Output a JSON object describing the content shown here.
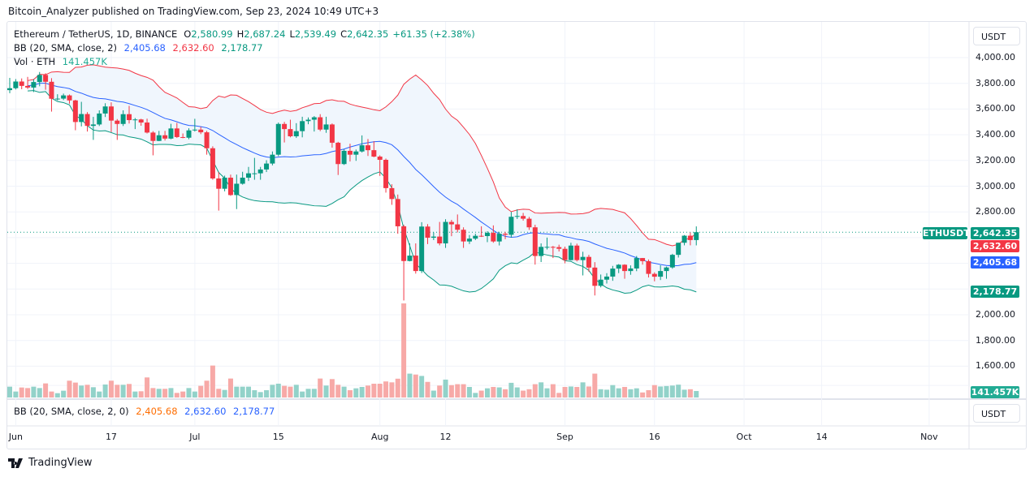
{
  "publish_line": "Bitcoin_Analyzer published on TradingView.com, Sep 23, 2024 10:49 UTC+3",
  "legend": {
    "symbol": "Ethereum / TetherUS, 1D, BINANCE",
    "open_label": "O",
    "open": "2,580.99",
    "high_label": "H",
    "high": "2,687.24",
    "low_label": "L",
    "low": "2,539.49",
    "close_label": "C",
    "close": "2,642.35",
    "change": "+61.35 (+2.38%)",
    "bb_label": "BB (20, SMA, close, 2)",
    "bb_basis": "2,405.68",
    "bb_upper": "2,632.60",
    "bb_lower": "2,178.77",
    "vol_label": "Vol · ETH",
    "vol_value": "141.457K"
  },
  "lower_pane": {
    "bb_label": "BB (20, SMA, close, 2, 0)",
    "v1": "2,405.68",
    "v2": "2,632.60",
    "v3": "2,178.77"
  },
  "currency_button": "USDT",
  "price_axis_labels": [
    "4,000.00",
    "3,800.00",
    "3,600.00",
    "3,400.00",
    "3,200.00",
    "3,000.00",
    "2,800.00",
    "2,000.00",
    "1,800.00",
    "1,600.00"
  ],
  "price_tags": {
    "symbol": "ETHUSDT",
    "last": "2,642.35",
    "bb_upper": "2,632.60",
    "bb_basis": "2,405.68",
    "bb_lower": "2,178.77",
    "volume": "141.457K"
  },
  "time_axis_labels": [
    "Jun",
    "17",
    "Jul",
    "15",
    "Aug",
    "12",
    "Sep",
    "16",
    "Oct",
    "14",
    "Nov"
  ],
  "footer_logo": "TradingView",
  "colors": {
    "up": "#089981",
    "down": "#f23645",
    "vol_up": "#92d2c9",
    "vol_down": "#f7a9a7",
    "bb_basis": "#2962ff",
    "bb_upper": "#f23645",
    "bb_lower": "#089981",
    "bb_fill": "#f0f6fd"
  },
  "chart_data": {
    "type": "candlestick",
    "symbol": "ETHUSDT",
    "interval": "1D",
    "start_date": "2024-05-31",
    "y_range": [
      1550,
      4150
    ],
    "grid": true,
    "indicators": [
      "BB (20, SMA, close, 2)",
      "Volume"
    ],
    "ohlc": [
      [
        3747,
        3842,
        3723,
        3762
      ],
      [
        3762,
        3833,
        3752,
        3814
      ],
      [
        3814,
        3838,
        3754,
        3780
      ],
      [
        3780,
        3850,
        3756,
        3767
      ],
      [
        3767,
        3832,
        3732,
        3810
      ],
      [
        3810,
        3888,
        3777,
        3865
      ],
      [
        3865,
        3878,
        3750,
        3812
      ],
      [
        3812,
        3840,
        3580,
        3680
      ],
      [
        3680,
        3715,
        3667,
        3681
      ],
      [
        3681,
        3720,
        3670,
        3706
      ],
      [
        3706,
        3713,
        3642,
        3667
      ],
      [
        3667,
        3672,
        3435,
        3499
      ],
      [
        3499,
        3656,
        3465,
        3561
      ],
      [
        3561,
        3576,
        3425,
        3469
      ],
      [
        3469,
        3539,
        3360,
        3480
      ],
      [
        3480,
        3590,
        3468,
        3565
      ],
      [
        3565,
        3645,
        3538,
        3620
      ],
      [
        3620,
        3652,
        3420,
        3510
      ],
      [
        3510,
        3522,
        3360,
        3484
      ],
      [
        3484,
        3590,
        3468,
        3560
      ],
      [
        3560,
        3625,
        3487,
        3514
      ],
      [
        3514,
        3530,
        3444,
        3519
      ],
      [
        3519,
        3524,
        3470,
        3495
      ],
      [
        3495,
        3525,
        3410,
        3417
      ],
      [
        3417,
        3428,
        3240,
        3352
      ],
      [
        3352,
        3430,
        3350,
        3396
      ],
      [
        3396,
        3430,
        3355,
        3370
      ],
      [
        3370,
        3485,
        3365,
        3449
      ],
      [
        3449,
        3492,
        3375,
        3382
      ],
      [
        3382,
        3410,
        3373,
        3377
      ],
      [
        3377,
        3450,
        3365,
        3434
      ],
      [
        3434,
        3524,
        3425,
        3440
      ],
      [
        3440,
        3462,
        3405,
        3419
      ],
      [
        3419,
        3430,
        3245,
        3295
      ],
      [
        3295,
        3310,
        3050,
        3060
      ],
      [
        3060,
        3110,
        2810,
        2980
      ],
      [
        2980,
        3082,
        2960,
        3066
      ],
      [
        3066,
        3090,
        2925,
        2931
      ],
      [
        2931,
        3090,
        2822,
        3019
      ],
      [
        3019,
        3112,
        3012,
        3066
      ],
      [
        3066,
        3150,
        3040,
        3100
      ],
      [
        3100,
        3220,
        3050,
        3100
      ],
      [
        3100,
        3150,
        3050,
        3130
      ],
      [
        3130,
        3202,
        3110,
        3176
      ],
      [
        3176,
        3270,
        3162,
        3245
      ],
      [
        3245,
        3495,
        3233,
        3484
      ],
      [
        3484,
        3500,
        3340,
        3444
      ],
      [
        3444,
        3517,
        3380,
        3388
      ],
      [
        3388,
        3490,
        3375,
        3428
      ],
      [
        3428,
        3540,
        3380,
        3506
      ],
      [
        3506,
        3535,
        3482,
        3517
      ],
      [
        3517,
        3545,
        3425,
        3536
      ],
      [
        3536,
        3560,
        3428,
        3440
      ],
      [
        3440,
        3540,
        3415,
        3480
      ],
      [
        3480,
        3488,
        3300,
        3338
      ],
      [
        3338,
        3345,
        3087,
        3172
      ],
      [
        3172,
        3287,
        3165,
        3275
      ],
      [
        3275,
        3330,
        3192,
        3245
      ],
      [
        3245,
        3285,
        3197,
        3270
      ],
      [
        3270,
        3395,
        3262,
        3318
      ],
      [
        3318,
        3367,
        3235,
        3280
      ],
      [
        3280,
        3350,
        3225,
        3230
      ],
      [
        3230,
        3240,
        3080,
        3205
      ],
      [
        3205,
        3215,
        2950,
        2985
      ],
      [
        2985,
        3015,
        2855,
        2900
      ],
      [
        2900,
        2935,
        2630,
        2688
      ],
      [
        2688,
        2700,
        2111,
        2418
      ],
      [
        2418,
        2555,
        2415,
        2460
      ],
      [
        2460,
        2555,
        2320,
        2340
      ],
      [
        2340,
        2720,
        2325,
        2686
      ],
      [
        2686,
        2705,
        2550,
        2599
      ],
      [
        2599,
        2640,
        2581,
        2608
      ],
      [
        2608,
        2722,
        2540,
        2555
      ],
      [
        2555,
        2743,
        2520,
        2722
      ],
      [
        2722,
        2738,
        2611,
        2703
      ],
      [
        2703,
        2780,
        2640,
        2661
      ],
      [
        2661,
        2680,
        2520,
        2570
      ],
      [
        2570,
        2620,
        2550,
        2592
      ],
      [
        2592,
        2630,
        2581,
        2614
      ],
      [
        2614,
        2688,
        2605,
        2612
      ],
      [
        2612,
        2650,
        2565,
        2637
      ],
      [
        2637,
        2695,
        2560,
        2570
      ],
      [
        2570,
        2645,
        2539,
        2630
      ],
      [
        2630,
        2645,
        2588,
        2622
      ],
      [
        2622,
        2800,
        2600,
        2762
      ],
      [
        2762,
        2820,
        2745,
        2768
      ],
      [
        2768,
        2792,
        2732,
        2747
      ],
      [
        2747,
        2761,
        2660,
        2680
      ],
      [
        2680,
        2700,
        2390,
        2457
      ],
      [
        2457,
        2555,
        2410,
        2528
      ],
      [
        2528,
        2600,
        2508,
        2528
      ],
      [
        2528,
        2535,
        2441,
        2526
      ],
      [
        2526,
        2545,
        2492,
        2513
      ],
      [
        2513,
        2530,
        2400,
        2425
      ],
      [
        2425,
        2560,
        2422,
        2538
      ],
      [
        2538,
        2553,
        2415,
        2425
      ],
      [
        2425,
        2490,
        2306,
        2450
      ],
      [
        2450,
        2466,
        2335,
        2367
      ],
      [
        2367,
        2409,
        2150,
        2225
      ],
      [
        2225,
        2313,
        2213,
        2273
      ],
      [
        2273,
        2323,
        2243,
        2297
      ],
      [
        2297,
        2380,
        2264,
        2359
      ],
      [
        2359,
        2394,
        2324,
        2389
      ],
      [
        2389,
        2393,
        2280,
        2340
      ],
      [
        2340,
        2384,
        2311,
        2360
      ],
      [
        2360,
        2457,
        2339,
        2441
      ],
      [
        2441,
        2442,
        2390,
        2417
      ],
      [
        2417,
        2430,
        2290,
        2318
      ],
      [
        2318,
        2330,
        2260,
        2296
      ],
      [
        2296,
        2385,
        2270,
        2340
      ],
      [
        2340,
        2375,
        2280,
        2368
      ],
      [
        2368,
        2474,
        2358,
        2466
      ],
      [
        2466,
        2560,
        2445,
        2560
      ],
      [
        2560,
        2620,
        2540,
        2615
      ],
      [
        2615,
        2640,
        2540,
        2581
      ],
      [
        2580.99,
        2687.24,
        2539.49,
        2642.35
      ]
    ],
    "volume_k": [
      236,
      130,
      218,
      206,
      236,
      206,
      307,
      130,
      94,
      148,
      366,
      325,
      260,
      277,
      224,
      130,
      283,
      366,
      277,
      277,
      295,
      130,
      136,
      437,
      206,
      189,
      189,
      206,
      100,
      130,
      206,
      130,
      254,
      366,
      696,
      189,
      165,
      413,
      236,
      236,
      236,
      159,
      118,
      159,
      277,
      301,
      254,
      236,
      277,
      130,
      189,
      189,
      413,
      260,
      401,
      277,
      236,
      159,
      200,
      230,
      260,
      300,
      300,
      350,
      330,
      410,
      2050,
      520,
      500,
      470,
      340,
      150,
      260,
      390,
      270,
      290,
      290,
      230,
      100,
      150,
      200,
      230,
      220,
      180,
      320,
      220,
      150,
      180,
      290,
      330,
      200,
      290,
      100,
      230,
      240,
      230,
      330,
      240,
      520,
      180,
      170,
      270,
      200,
      230,
      180,
      200,
      110,
      160,
      270,
      240,
      250,
      260,
      280,
      170,
      180,
      141.457
    ],
    "last_price": 2642.35
  }
}
